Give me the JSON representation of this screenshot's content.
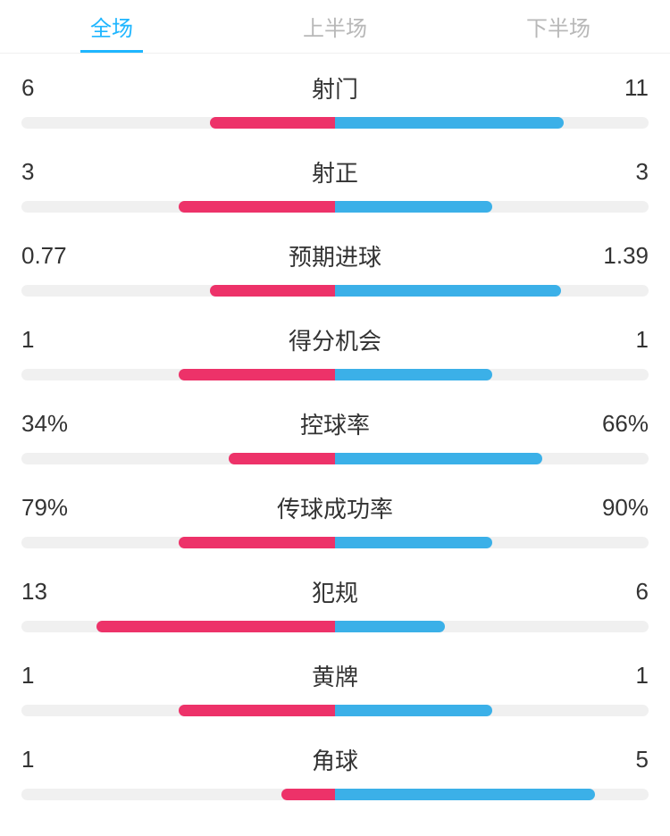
{
  "tabs": {
    "items": [
      {
        "label": "全场",
        "active": true
      },
      {
        "label": "上半场",
        "active": false
      },
      {
        "label": "下半场",
        "active": false
      }
    ]
  },
  "colors": {
    "left_team": "#ed3269",
    "right_team": "#3bb0e8",
    "bar_background": "#f0f0f0",
    "active_tab": "#1fb6ff",
    "inactive_tab": "#b8b8b8",
    "text": "#333333"
  },
  "stats": [
    {
      "label": "射门",
      "left_value": "6",
      "right_value": "11",
      "left_pct": 40,
      "right_pct": 73
    },
    {
      "label": "射正",
      "left_value": "3",
      "right_value": "3",
      "left_pct": 50,
      "right_pct": 50
    },
    {
      "label": "预期进球",
      "left_value": "0.77",
      "right_value": "1.39",
      "left_pct": 40,
      "right_pct": 72
    },
    {
      "label": "得分机会",
      "left_value": "1",
      "right_value": "1",
      "left_pct": 50,
      "right_pct": 50
    },
    {
      "label": "控球率",
      "left_value": "34%",
      "right_value": "66%",
      "left_pct": 34,
      "right_pct": 66
    },
    {
      "label": "传球成功率",
      "left_value": "79%",
      "right_value": "90%",
      "left_pct": 50,
      "right_pct": 50
    },
    {
      "label": "犯规",
      "left_value": "13",
      "right_value": "6",
      "left_pct": 76,
      "right_pct": 35
    },
    {
      "label": "黄牌",
      "left_value": "1",
      "right_value": "1",
      "left_pct": 50,
      "right_pct": 50
    },
    {
      "label": "角球",
      "left_value": "1",
      "right_value": "5",
      "left_pct": 17,
      "right_pct": 83
    }
  ]
}
